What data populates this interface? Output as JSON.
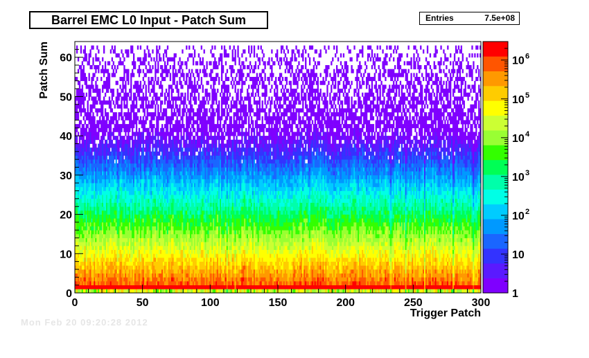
{
  "chart_data": {
    "type": "heatmap",
    "title": "Barrel EMC L0 Input - Patch Sum",
    "xlabel": "Trigger Patch",
    "ylabel": "Patch Sum",
    "xlim": [
      0,
      300
    ],
    "ylim": [
      0,
      64
    ],
    "x_ticks": [
      0,
      50,
      100,
      150,
      200,
      250,
      300
    ],
    "y_ticks": [
      0,
      10,
      20,
      30,
      40,
      50,
      60
    ],
    "z_scale": "log",
    "z_range": [
      1,
      3000000
    ],
    "z_ticks": [
      "1",
      "10",
      "10",
      "10",
      "10",
      "10",
      "10"
    ],
    "z_tick_exponents": [
      "",
      "",
      "2",
      "3",
      "4",
      "5",
      "6"
    ],
    "z_tick_values": [
      1,
      10,
      100,
      1000,
      10000,
      100000,
      1000000
    ],
    "grid": false,
    "colormap": [
      "#7f00ff",
      "#5a1aff",
      "#3333ff",
      "#1a66ff",
      "#0099ff",
      "#00ccff",
      "#00ffe6",
      "#00ffaa",
      "#00ff55",
      "#33ff00",
      "#99ff33",
      "#ccff33",
      "#ffff00",
      "#ffcc00",
      "#ff9900",
      "#ff5500",
      "#ff0000"
    ],
    "bins_x": 300,
    "bins_y": 64,
    "profile_note": "counts fall roughly as 10^(6 - 0.13*sum) for sums 0-2, spread down to ~1 count near sum 60",
    "hot_columns": [
      112,
      118,
      233,
      244,
      258,
      279,
      294
    ]
  },
  "stats": {
    "entries_label": "Entries",
    "entries_value": "7.5e+08"
  },
  "footer": {
    "date_text": "Mon Feb 20 09:20:28 2012"
  }
}
